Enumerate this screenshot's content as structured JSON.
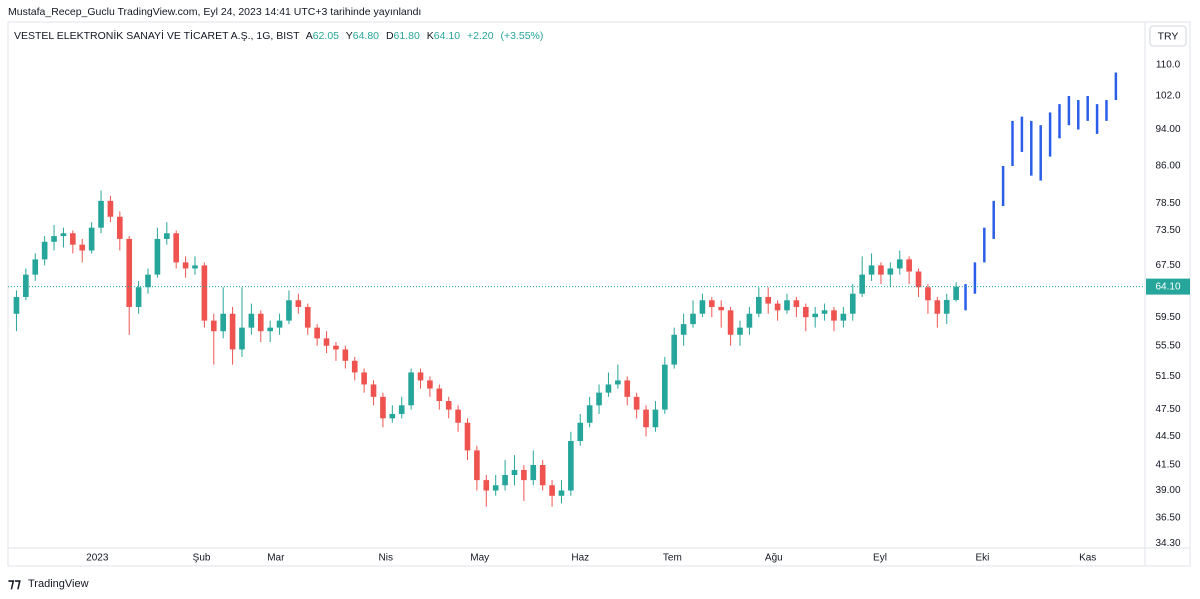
{
  "header": {
    "publisher": "Mustafa_Recep_Guclu TradingView.com, Eyl 24, 2023 14:41 UTC+3 tarihinde yayınlandı",
    "logo": "TradingView"
  },
  "chart_data": {
    "type": "candlestick",
    "title": "VESTEL ELEKTRONİK SANAYİ VE TİCARET A.Ş., 1G, BIST",
    "legend": {
      "open_label": "A",
      "open": 62.05,
      "high_label": "Y",
      "high": {
        "value": 64.8,
        "label": "64.80"
      },
      "low_label": "D",
      "low": {
        "value": 61.8,
        "label": "61.80"
      },
      "close_label": "K",
      "close": {
        "value": 64.1,
        "label": "64.10"
      },
      "change": {
        "value": 2.2,
        "label": "+2.20"
      },
      "change_pct": {
        "value": 3.55,
        "label": "(+3.55%)"
      }
    },
    "currency": "TRY",
    "up_color": "#26a69a",
    "down_color": "#ef5350",
    "projection_color": "#2a5ee8",
    "log_scale": true,
    "grid": false,
    "ylim": [
      33.9,
      115.5
    ],
    "yticks": [
      {
        "value": 34.3,
        "label": "34.30"
      },
      {
        "value": 36.5,
        "label": "36.50"
      },
      {
        "value": 39,
        "label": "39.00"
      },
      {
        "value": 41.5,
        "label": "41.50"
      },
      {
        "value": 44.5,
        "label": "44.50"
      },
      {
        "value": 47.5,
        "label": "47.50"
      },
      {
        "value": 51.5,
        "label": "51.50"
      },
      {
        "value": 55.5,
        "label": "55.50"
      },
      {
        "value": 59.5,
        "label": "59.50"
      },
      {
        "value": 67.5,
        "label": "67.50"
      },
      {
        "value": 73.5,
        "label": "73.50"
      },
      {
        "value": 78.5,
        "label": "78.50"
      },
      {
        "value": 86,
        "label": "86.00"
      },
      {
        "value": 94,
        "label": "94.00"
      },
      {
        "value": 102,
        "label": "102.0"
      },
      {
        "value": 110,
        "label": "110.0"
      }
    ],
    "last_price": {
      "value": 64.1,
      "label": "64.10"
    },
    "xlim": [
      -0.9,
      120.1
    ],
    "xticks": [
      {
        "value": 8.6,
        "label": "2023"
      },
      {
        "value": 19.7,
        "label": "Şub"
      },
      {
        "value": 27.6,
        "label": "Mar"
      },
      {
        "value": 39.3,
        "label": "Nis"
      },
      {
        "value": 49.3,
        "label": "May"
      },
      {
        "value": 60,
        "label": "Haz"
      },
      {
        "value": 69.8,
        "label": "Tem"
      },
      {
        "value": 80.6,
        "label": "Ağu"
      },
      {
        "value": 91.9,
        "label": "Eyl"
      },
      {
        "value": 102.8,
        "label": "Eki"
      },
      {
        "value": 114,
        "label": "Kas"
      }
    ],
    "candles": [
      [
        60,
        63.5,
        57.5,
        62.5
      ],
      [
        62.5,
        67,
        62,
        66
      ],
      [
        66,
        69.5,
        65,
        68.5
      ],
      [
        68.5,
        72.5,
        67.5,
        71.5
      ],
      [
        71.5,
        74.5,
        70,
        72.5
      ],
      [
        72.5,
        74,
        70.5,
        73
      ],
      [
        73,
        73.5,
        69.5,
        71
      ],
      [
        71,
        72,
        68,
        70
      ],
      [
        70,
        75,
        69.5,
        74
      ],
      [
        74,
        81,
        73,
        79
      ],
      [
        79,
        80,
        75,
        76
      ],
      [
        76,
        77,
        70,
        72
      ],
      [
        72,
        72.5,
        57,
        61
      ],
      [
        61,
        65,
        60,
        64
      ],
      [
        64,
        67,
        63,
        66
      ],
      [
        66,
        74,
        65.5,
        72
      ],
      [
        72,
        75,
        71,
        73
      ],
      [
        73,
        73.5,
        67,
        68
      ],
      [
        68,
        69,
        65.5,
        67
      ],
      [
        67,
        69,
        66,
        67.5
      ],
      [
        67.5,
        68,
        58,
        59
      ],
      [
        59,
        60,
        53,
        57.5
      ],
      [
        57.5,
        64,
        56.5,
        60
      ],
      [
        60,
        61,
        53,
        55
      ],
      [
        55,
        64,
        54,
        58
      ],
      [
        58,
        61.5,
        57,
        60
      ],
      [
        60,
        60.5,
        56,
        57.5
      ],
      [
        57.5,
        59,
        56,
        58
      ],
      [
        58,
        60,
        57,
        59
      ],
      [
        59,
        63.5,
        58.5,
        62
      ],
      [
        62,
        63,
        60,
        61
      ],
      [
        61,
        61.5,
        57,
        58
      ],
      [
        58,
        58.5,
        55.5,
        56.5
      ],
      [
        56.5,
        57.5,
        54.5,
        55.5
      ],
      [
        55.5,
        56,
        53.5,
        55
      ],
      [
        55,
        55.5,
        52.5,
        53.5
      ],
      [
        53.5,
        54,
        51,
        52
      ],
      [
        52,
        52.5,
        49.5,
        50.5
      ],
      [
        50.5,
        51,
        48,
        49
      ],
      [
        49,
        49.5,
        45.5,
        46.5
      ],
      [
        46.5,
        48,
        46,
        47
      ],
      [
        47,
        49,
        46.5,
        48
      ],
      [
        48,
        52.5,
        47.5,
        52
      ],
      [
        52,
        52.5,
        50,
        51
      ],
      [
        51,
        51.5,
        49,
        50
      ],
      [
        50,
        50.5,
        47.5,
        48.5
      ],
      [
        48.5,
        49,
        46.5,
        47.5
      ],
      [
        47.5,
        48,
        45,
        46
      ],
      [
        46,
        46.5,
        42,
        43
      ],
      [
        43,
        43.5,
        39,
        40
      ],
      [
        40,
        40.5,
        37.5,
        39
      ],
      [
        39,
        40.5,
        38.5,
        39.5
      ],
      [
        39.5,
        42,
        39,
        40.5
      ],
      [
        40.5,
        42.5,
        39.5,
        41
      ],
      [
        41,
        41.5,
        38,
        40
      ],
      [
        40,
        43,
        39.5,
        41.5
      ],
      [
        41.5,
        42,
        39,
        39.5
      ],
      [
        39.5,
        40,
        37.5,
        38.5
      ],
      [
        38.5,
        40,
        37.8,
        39
      ],
      [
        39,
        45,
        38.5,
        44
      ],
      [
        44,
        47,
        43.5,
        46
      ],
      [
        46,
        49,
        45.5,
        48
      ],
      [
        48,
        50.5,
        47,
        49.5
      ],
      [
        49.5,
        52,
        49,
        50.5
      ],
      [
        50.5,
        53,
        50,
        51
      ],
      [
        51,
        51.5,
        48,
        49
      ],
      [
        49,
        49.5,
        46.5,
        47.5
      ],
      [
        47.5,
        48,
        44.5,
        45.5
      ],
      [
        45.5,
        48.5,
        45,
        47.5
      ],
      [
        47.5,
        54,
        47,
        53
      ],
      [
        53,
        58,
        52.5,
        57
      ],
      [
        57,
        60,
        55.5,
        58.5
      ],
      [
        58.5,
        62,
        58,
        60
      ],
      [
        60,
        63,
        59.5,
        62
      ],
      [
        62,
        62.5,
        59.5,
        61
      ],
      [
        61,
        62,
        58,
        60.5
      ],
      [
        60.5,
        61,
        55.5,
        57
      ],
      [
        57,
        59,
        55.5,
        58
      ],
      [
        58,
        61,
        57,
        60
      ],
      [
        60,
        64,
        59.5,
        62.5
      ],
      [
        62.5,
        64,
        60,
        61.5
      ],
      [
        61.5,
        62,
        59,
        60.5
      ],
      [
        60.5,
        63,
        60,
        62
      ],
      [
        62,
        62.5,
        59.5,
        61
      ],
      [
        61,
        61.5,
        57.5,
        59.5
      ],
      [
        59.5,
        61,
        58,
        60
      ],
      [
        60,
        61.5,
        59,
        60.5
      ],
      [
        60.5,
        61,
        57.5,
        59
      ],
      [
        59,
        61,
        58,
        60
      ],
      [
        60,
        64.5,
        59,
        63
      ],
      [
        63,
        69,
        62.5,
        66
      ],
      [
        66,
        69.5,
        65,
        67.5
      ],
      [
        67.5,
        68,
        64.5,
        66
      ],
      [
        66,
        68,
        64,
        67
      ],
      [
        67,
        70,
        66,
        68.5
      ],
      [
        68.5,
        69,
        64.5,
        66.5
      ],
      [
        66.5,
        67,
        62.5,
        64
      ],
      [
        64,
        64.5,
        60,
        62
      ],
      [
        62,
        62.5,
        58,
        60
      ],
      [
        60,
        63,
        58.5,
        62.05
      ],
      [
        62.05,
        64.8,
        61.8,
        64.1
      ]
    ],
    "projection": [
      [
        60.5,
        64.5
      ],
      [
        63,
        68
      ],
      [
        68,
        74
      ],
      [
        72,
        79
      ],
      [
        78,
        86
      ],
      [
        86,
        96
      ],
      [
        89,
        97
      ],
      [
        84,
        96
      ],
      [
        83,
        95
      ],
      [
        88,
        98
      ],
      [
        92,
        100
      ],
      [
        95,
        102
      ],
      [
        94,
        101
      ],
      [
        96,
        102
      ],
      [
        93,
        100
      ],
      [
        96,
        101
      ],
      [
        101,
        108
      ]
    ]
  }
}
